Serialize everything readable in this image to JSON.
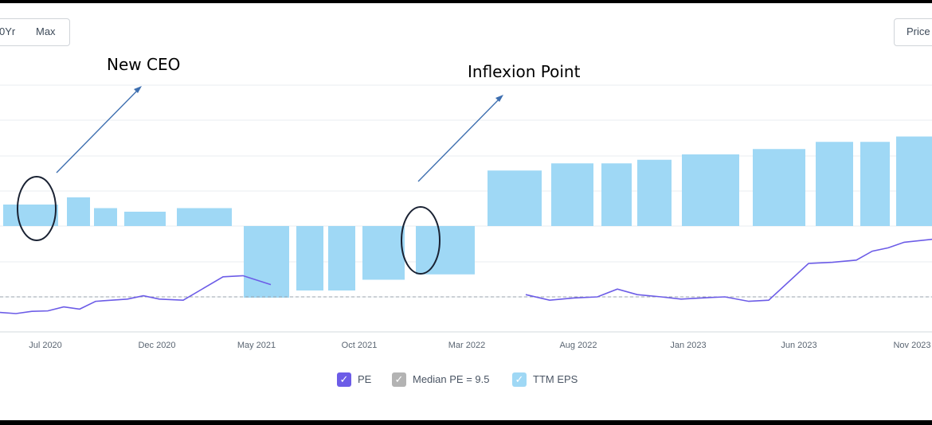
{
  "toolbar": {
    "range_left_partial": "0Yr",
    "range_max": "Max",
    "price_partial": "Price"
  },
  "annotations": {
    "new_ceo": "New CEO",
    "inflexion_point": "Inflexion Point"
  },
  "legend": {
    "pe": {
      "label": "PE",
      "color": "#6c5ce7"
    },
    "median": {
      "label": "Median PE = 9.5",
      "color": "#b3b3b3"
    },
    "eps": {
      "label": "TTM EPS",
      "color": "#9fd8f5"
    }
  },
  "chart_data": {
    "type": "bar",
    "x_ticks": [
      "Jul 2020",
      "Dec 2020",
      "May 2021",
      "Oct 2021",
      "Mar 2022",
      "Aug 2022",
      "Jan 2023",
      "Jun 2023",
      "Nov 2023"
    ],
    "series": [
      {
        "name": "TTM EPS",
        "type": "bar",
        "color": "#9fd8f5",
        "values": [
          0.6,
          0.8,
          0.5,
          0.4,
          0.5,
          -2.0,
          -1.8,
          -1.8,
          -1.5,
          -1.35,
          1.55,
          1.75,
          1.75,
          1.85,
          2.0,
          2.15,
          2.35,
          2.35,
          2.5
        ]
      },
      {
        "name": "PE",
        "type": "line",
        "color": "#6c5ce7",
        "values": [
          -0.7,
          -0.75,
          -0.65,
          -0.63,
          -0.45,
          -0.55,
          -0.2,
          -0.15,
          -0.1,
          0.05,
          -0.1,
          -0.15,
          0.9,
          0.95,
          0.55,
          null,
          null,
          null,
          null,
          0.1,
          -0.15,
          -0.05,
          0.0,
          0.35,
          0.1,
          0.0,
          -0.1,
          -0.05,
          0.0,
          -0.2,
          -0.15,
          1.5,
          1.55,
          1.65,
          2.05,
          2.2,
          2.45,
          2.6
        ]
      }
    ],
    "median_pe": 9.5,
    "baseline_eps": 0,
    "grid": true,
    "legend_position": "bottom"
  }
}
